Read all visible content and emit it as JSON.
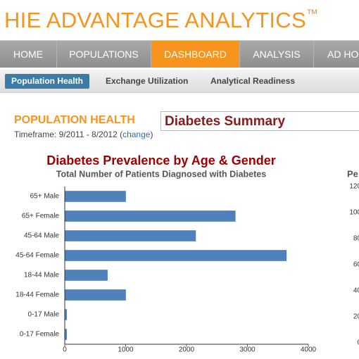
{
  "header": {
    "title": "HIE ADVANTAGE ANALYTICS",
    "trademark": "™"
  },
  "nav": [
    "HOME",
    "POPULATIONS",
    "DASHBOARD",
    "ANALYSIS",
    "AD HOC"
  ],
  "subnav": [
    "Population Health",
    "Exchange Utilization",
    "Analytical Readiness"
  ],
  "section": {
    "title": "POPULATION HEALTH",
    "timeframe": [
      "Timeframe: 9/2011 - 8/2012 (",
      "change",
      ")"
    ],
    "selector": "Diabetes Summary"
  },
  "chart_data": [
    {
      "type": "hbar",
      "title": "Diabetes Prevalence by Age & Gender",
      "subtitle": "Total Number of Patients Diagnosed with Diabetes",
      "categories": [
        "65+ Male",
        "65+ Female",
        "45-64 Male",
        "45-64 Female",
        "18-44 Male",
        "18-44 Female",
        "0-17 Male",
        "0-17 Female"
      ],
      "values": [
        1000,
        2800,
        2150,
        3640,
        700,
        1000,
        30,
        30
      ],
      "color": "#4f81bd",
      "xlim": [
        0,
        4000
      ],
      "xticks": [
        0,
        1000,
        2000,
        3000,
        4000
      ]
    },
    {
      "type": "partial",
      "title": "Pe",
      "ylim": [
        0,
        120
      ],
      "yticks": [
        0,
        20,
        40,
        60,
        80,
        100,
        120
      ]
    }
  ]
}
